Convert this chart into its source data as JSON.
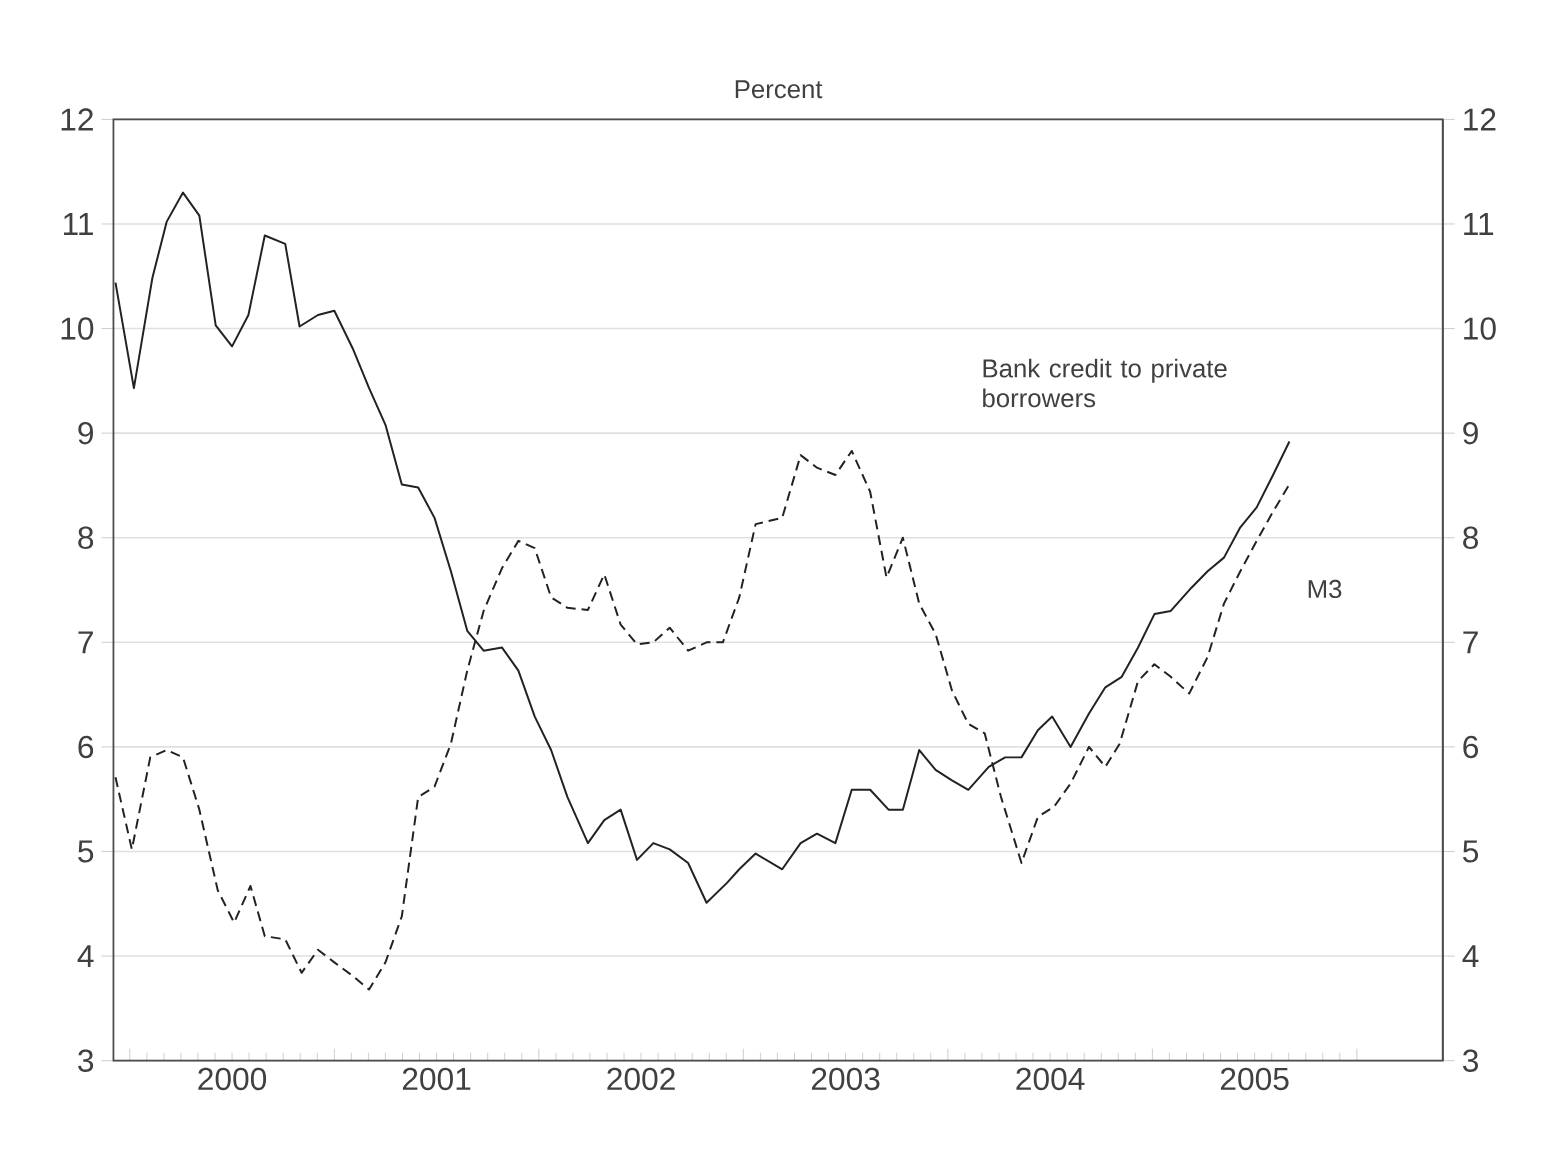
{
  "chart_data": {
    "type": "line",
    "title": "Percent",
    "xlim": [
      1999.92,
      2006.42
    ],
    "xticks": [
      {
        "value": 2000,
        "label": null
      },
      {
        "value": 2001,
        "label": null
      },
      {
        "value": 2002,
        "label": null
      },
      {
        "value": 2003,
        "label": null
      },
      {
        "value": 2004,
        "label": null
      },
      {
        "value": 2005,
        "label": null
      },
      {
        "value": 2006,
        "label": null
      },
      {
        "value": 2000.5,
        "label": "2000"
      },
      {
        "value": 2001.5,
        "label": "2001"
      },
      {
        "value": 2002.5,
        "label": "2002"
      },
      {
        "value": 2003.5,
        "label": "2003"
      },
      {
        "value": 2004.5,
        "label": "2004"
      },
      {
        "value": 2005.5,
        "label": "2005"
      }
    ],
    "ylim": [
      3,
      12
    ],
    "yticks": [
      3,
      4,
      5,
      6,
      7,
      8,
      9,
      10,
      11,
      12
    ],
    "y2lim": [
      3,
      12
    ],
    "y2ticks": [
      3,
      4,
      5,
      6,
      7,
      8,
      9,
      10,
      11,
      12
    ],
    "grid": "y",
    "series": [
      {
        "name": "Bank credit to private borrowers",
        "color": "#222222",
        "line_style": "solid",
        "x": [
          1999.93,
          2000.02,
          2000.11,
          2000.18,
          2000.26,
          2000.34,
          2000.42,
          2000.5,
          2000.58,
          2000.66,
          2000.76,
          2000.83,
          2000.92,
          2001.0,
          2001.09,
          2001.17,
          2001.25,
          2001.33,
          2001.41,
          2001.49,
          2001.57,
          2001.65,
          2001.73,
          2001.82,
          2001.9,
          2001.98,
          2002.06,
          2002.14,
          2002.24,
          2002.32,
          2002.4,
          2002.48,
          2002.56,
          2002.64,
          2002.73,
          2002.82,
          2002.92,
          2002.98,
          2003.06,
          2003.19,
          2003.28,
          2003.36,
          2003.45,
          2003.53,
          2003.62,
          2003.71,
          2003.78,
          2003.86,
          2003.94,
          2004.02,
          2004.1,
          2004.2,
          2004.28,
          2004.36,
          2004.44,
          2004.51,
          2004.6,
          2004.69,
          2004.77,
          2004.85,
          2004.93,
          2005.01,
          2005.09,
          2005.19,
          2005.27,
          2005.35,
          2005.43,
          2005.51,
          2005.59,
          2005.67
        ],
        "values": [
          10.44,
          9.43,
          10.48,
          11.02,
          11.3,
          11.08,
          10.03,
          9.83,
          10.13,
          10.89,
          10.81,
          10.02,
          10.13,
          10.17,
          9.81,
          9.43,
          9.08,
          8.51,
          8.48,
          8.19,
          7.68,
          7.11,
          6.92,
          6.95,
          6.73,
          6.29,
          5.97,
          5.52,
          5.08,
          5.3,
          5.4,
          4.92,
          5.08,
          5.02,
          4.89,
          4.51,
          4.7,
          4.83,
          4.98,
          4.83,
          5.08,
          5.17,
          5.08,
          5.59,
          5.59,
          5.4,
          5.4,
          5.97,
          5.78,
          5.68,
          5.59,
          5.81,
          5.9,
          5.9,
          6.16,
          6.29,
          6.0,
          6.32,
          6.57,
          6.67,
          6.95,
          7.27,
          7.3,
          7.52,
          7.68,
          7.81,
          8.1,
          8.29,
          8.6,
          8.92
        ]
      },
      {
        "name": "M3",
        "color": "#222222",
        "line_style": "dashed",
        "x": [
          1999.93,
          2000.01,
          2000.1,
          2000.18,
          2000.26,
          2000.34,
          2000.43,
          2000.51,
          2000.59,
          2000.66,
          2000.76,
          2000.84,
          2000.92,
          2001.0,
          2001.09,
          2001.17,
          2001.25,
          2001.33,
          2001.41,
          2001.49,
          2001.57,
          2001.65,
          2001.73,
          2001.82,
          2001.9,
          2001.98,
          2002.06,
          2002.14,
          2002.24,
          2002.32,
          2002.4,
          2002.48,
          2002.56,
          2002.64,
          2002.73,
          2002.82,
          2002.9,
          2002.98,
          2003.06,
          2003.19,
          2003.28,
          2003.36,
          2003.45,
          2003.53,
          2003.62,
          2003.7,
          2003.78,
          2003.86,
          2003.94,
          2004.02,
          2004.1,
          2004.18,
          2004.26,
          2004.36,
          2004.44,
          2004.52,
          2004.6,
          2004.69,
          2004.77,
          2004.84,
          2004.93,
          2005.01,
          2005.09,
          2005.18,
          2005.27,
          2005.35,
          2005.43,
          2005.51,
          2005.59,
          2005.67
        ],
        "values": [
          5.71,
          5.02,
          5.9,
          5.97,
          5.9,
          5.4,
          4.63,
          4.32,
          4.67,
          4.19,
          4.16,
          3.84,
          4.06,
          3.94,
          3.81,
          3.68,
          3.94,
          4.38,
          5.52,
          5.62,
          6.03,
          6.73,
          7.3,
          7.71,
          7.97,
          7.9,
          7.43,
          7.33,
          7.31,
          7.65,
          7.17,
          6.98,
          7.0,
          7.14,
          6.92,
          7.0,
          7.0,
          7.43,
          8.13,
          8.19,
          8.79,
          8.67,
          8.6,
          8.83,
          8.44,
          7.62,
          8.0,
          7.37,
          7.08,
          6.54,
          6.22,
          6.13,
          5.52,
          4.89,
          5.33,
          5.43,
          5.65,
          6.0,
          5.81,
          6.03,
          6.63,
          6.79,
          6.67,
          6.51,
          6.86,
          7.37,
          7.68,
          7.97,
          8.25,
          8.51
        ]
      }
    ]
  }
}
